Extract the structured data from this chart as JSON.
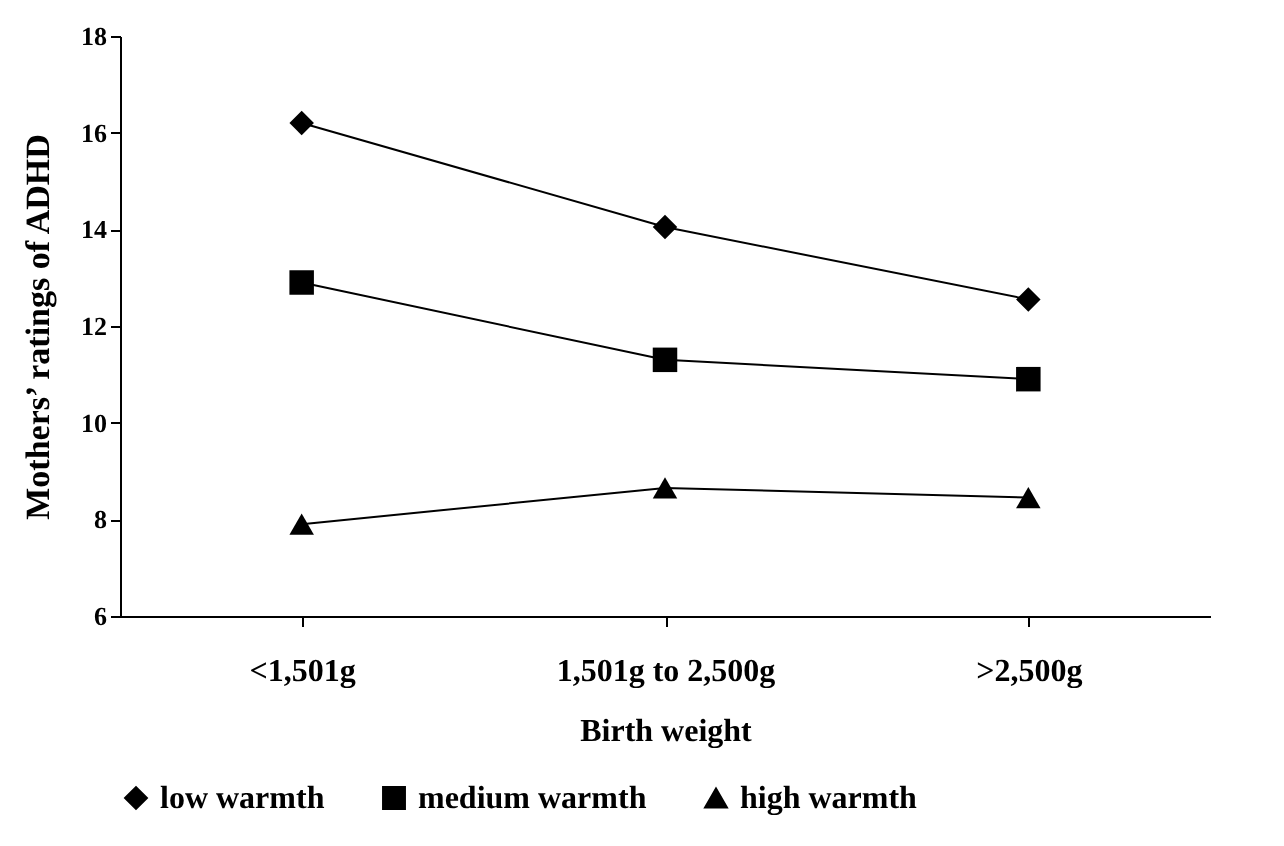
{
  "chart_data": {
    "type": "line",
    "xlabel": "Birth weight",
    "ylabel": "Mothers’ ratings of ADHD",
    "categories": [
      "<1,501g",
      "1,501g to 2,500g",
      ">2,500g"
    ],
    "series": [
      {
        "name": "low warmth",
        "color": "#000000",
        "marker": "diamond",
        "values": [
          16.2,
          14.05,
          12.55
        ]
      },
      {
        "name": "medium warmth",
        "color": "#000000",
        "marker": "square",
        "values": [
          12.9,
          11.3,
          10.9
        ]
      },
      {
        "name": "high warmth",
        "color": "#000000",
        "marker": "triangle",
        "values": [
          7.9,
          8.65,
          8.45
        ]
      }
    ],
    "ylim": [
      6,
      18
    ],
    "yticks": [
      6,
      8,
      10,
      12,
      14,
      16,
      18
    ],
    "grid": false,
    "legend": "bottom",
    "line_style": "solid"
  }
}
